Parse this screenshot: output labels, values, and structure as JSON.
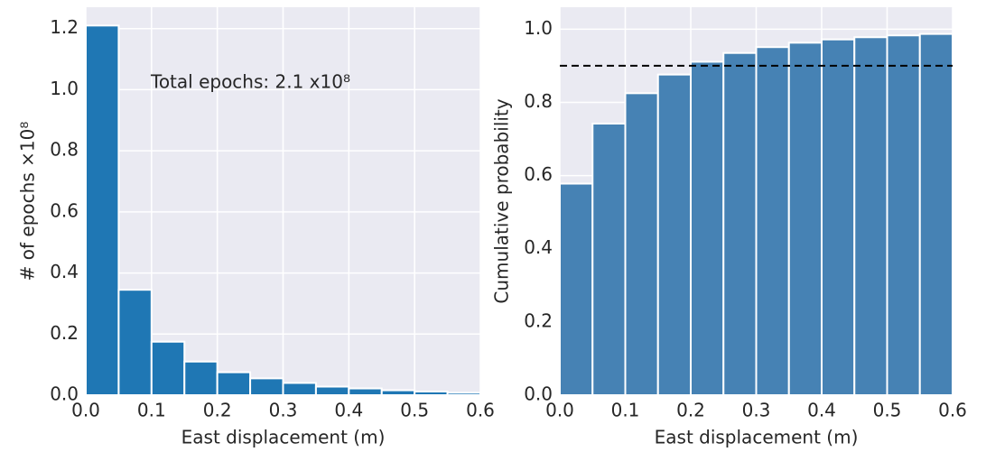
{
  "chart_data": [
    {
      "type": "histogram",
      "xlabel": "East displacement (m)",
      "ylabel": "# of epochs ×10⁸",
      "annotation": "Total epochs: 2.1 x10⁸",
      "bins": [
        0,
        0.05,
        0.1,
        0.15,
        0.2,
        0.25,
        0.3,
        0.35,
        0.4,
        0.45,
        0.5,
        0.55,
        0.6
      ],
      "values": [
        1.21,
        0.345,
        0.175,
        0.11,
        0.075,
        0.055,
        0.04,
        0.028,
        0.022,
        0.016,
        0.012,
        0.008
      ],
      "color": "#1f77b4",
      "xlim": [
        0,
        0.6
      ],
      "ylim": [
        0,
        1.27
      ],
      "xticks": [
        {
          "value": 0,
          "label": "0.0"
        },
        0.1,
        0.2,
        0.3,
        0.4,
        0.5,
        0.6
      ],
      "yticks": [
        {
          "value": 0,
          "label": "0.0"
        },
        0.2,
        0.4,
        0.6,
        0.8,
        {
          "value": 1,
          "label": "1.0"
        },
        1.2
      ],
      "grid": true
    },
    {
      "type": "histogram",
      "xlabel": "East displacement (m)",
      "ylabel": "Cumulative probability",
      "bins": [
        0,
        0.05,
        0.1,
        0.15,
        0.2,
        0.25,
        0.3,
        0.35,
        0.4,
        0.45,
        0.5,
        0.55,
        0.6
      ],
      "values": [
        0.578,
        0.742,
        0.825,
        0.876,
        0.911,
        0.935,
        0.951,
        0.963,
        0.972,
        0.978,
        0.983,
        0.987
      ],
      "color": "#4682b4",
      "hline": 0.9,
      "xlim": [
        0,
        0.6
      ],
      "ylim": [
        0,
        1.06
      ],
      "xticks": [
        {
          "value": 0,
          "label": "0.0"
        },
        0.1,
        0.2,
        0.3,
        0.4,
        0.5,
        0.6
      ],
      "yticks": [
        {
          "value": 0,
          "label": "0.0"
        },
        0.2,
        0.4,
        0.6,
        0.8,
        {
          "value": 1,
          "label": "1.0"
        }
      ],
      "grid": true
    }
  ]
}
